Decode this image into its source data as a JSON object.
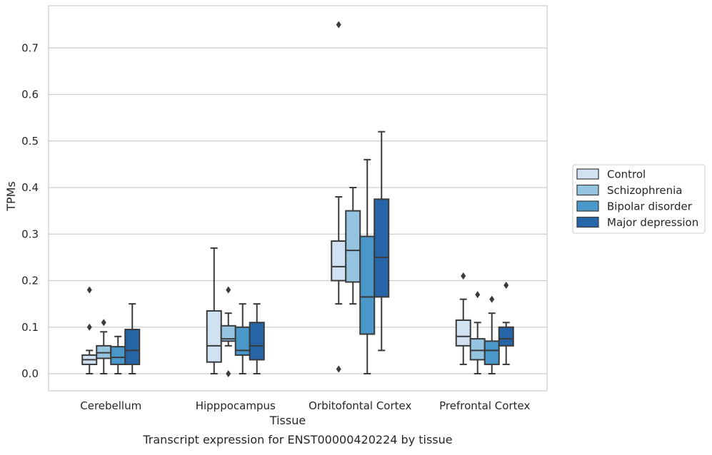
{
  "chart_data": {
    "type": "box",
    "caption": "Transcript expression for ENST00000420224 by tissue",
    "xlabel": "Tissue",
    "ylabel": "TPMs",
    "ylim": [
      -0.04,
      0.79
    ],
    "yticks": [
      0.0,
      0.1,
      0.2,
      0.3,
      0.4,
      0.5,
      0.6,
      0.7
    ],
    "ytick_labels": [
      "0.0",
      "0.1",
      "0.2",
      "0.3",
      "0.4",
      "0.5",
      "0.6",
      "0.7"
    ],
    "grid": "horizontal",
    "legend_position": "right",
    "categories": [
      "Cerebellum",
      "Hipppocampus",
      "Orbitofontal Cortex",
      "Prefrontal Cortex"
    ],
    "series": [
      {
        "name": "Control",
        "color": "#d0e1f2",
        "boxes": [
          {
            "whislo": 0.0,
            "q1": 0.02,
            "med": 0.03,
            "q3": 0.04,
            "whishi": 0.05,
            "fliers": [
              0.1,
              0.18
            ]
          },
          {
            "whislo": 0.0,
            "q1": 0.025,
            "med": 0.06,
            "q3": 0.135,
            "whishi": 0.27,
            "fliers": []
          },
          {
            "whislo": 0.15,
            "q1": 0.2,
            "med": 0.23,
            "q3": 0.285,
            "whishi": 0.38,
            "fliers": [
              0.75,
              0.01
            ]
          },
          {
            "whislo": 0.02,
            "q1": 0.06,
            "med": 0.08,
            "q3": 0.115,
            "whishi": 0.16,
            "fliers": [
              0.21
            ]
          }
        ]
      },
      {
        "name": "Schizophrenia",
        "color": "#94c4df",
        "boxes": [
          {
            "whislo": 0.0,
            "q1": 0.033,
            "med": 0.045,
            "q3": 0.06,
            "whishi": 0.09,
            "fliers": [
              0.11
            ]
          },
          {
            "whislo": 0.06,
            "q1": 0.07,
            "med": 0.075,
            "q3": 0.103,
            "whishi": 0.13,
            "fliers": [
              0.18,
              0.0
            ]
          },
          {
            "whislo": 0.15,
            "q1": 0.197,
            "med": 0.265,
            "q3": 0.35,
            "whishi": 0.4,
            "fliers": []
          },
          {
            "whislo": 0.0,
            "q1": 0.03,
            "med": 0.05,
            "q3": 0.075,
            "whishi": 0.11,
            "fliers": [
              0.17
            ]
          }
        ]
      },
      {
        "name": "Bipolar disorder",
        "color": "#4a98c9",
        "boxes": [
          {
            "whislo": 0.0,
            "q1": 0.02,
            "med": 0.035,
            "q3": 0.058,
            "whishi": 0.08,
            "fliers": []
          },
          {
            "whislo": 0.0,
            "q1": 0.04,
            "med": 0.05,
            "q3": 0.1,
            "whishi": 0.15,
            "fliers": []
          },
          {
            "whislo": 0.0,
            "q1": 0.085,
            "med": 0.165,
            "q3": 0.295,
            "whishi": 0.46,
            "fliers": []
          },
          {
            "whislo": 0.0,
            "q1": 0.02,
            "med": 0.05,
            "q3": 0.07,
            "whishi": 0.13,
            "fliers": [
              0.16
            ]
          }
        ]
      },
      {
        "name": "Major depression",
        "color": "#2666a8",
        "boxes": [
          {
            "whislo": 0.0,
            "q1": 0.02,
            "med": 0.05,
            "q3": 0.095,
            "whishi": 0.15,
            "fliers": []
          },
          {
            "whislo": 0.0,
            "q1": 0.03,
            "med": 0.06,
            "q3": 0.11,
            "whishi": 0.15,
            "fliers": []
          },
          {
            "whislo": 0.05,
            "q1": 0.165,
            "med": 0.25,
            "q3": 0.375,
            "whishi": 0.52,
            "fliers": []
          },
          {
            "whislo": 0.02,
            "q1": 0.06,
            "med": 0.075,
            "q3": 0.1,
            "whishi": 0.11,
            "fliers": [
              0.19
            ]
          }
        ]
      }
    ]
  }
}
